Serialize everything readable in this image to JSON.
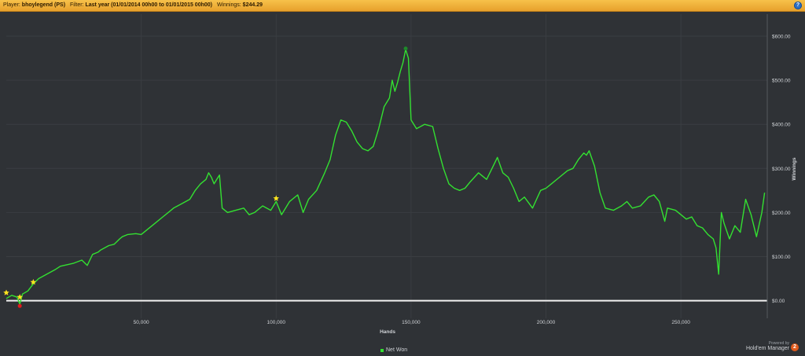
{
  "header": {
    "player_label": "Player:",
    "player_value": "bhoylegend (PS)",
    "filter_label": "Filter:",
    "filter_value": "Last year (01/01/2014 00h00 to 01/01/2015 00h00)",
    "winnings_label": "Winnings:",
    "winnings_value": "$244.29",
    "help_label": "?"
  },
  "branding": {
    "powered_by": "Powered by",
    "product": "Hold'em Manager",
    "badge": "2"
  },
  "colors": {
    "background": "#2f3236",
    "header": "#f2b33d",
    "line": "#33e031",
    "zero_line": "#f2f2f2",
    "grid": "#3a3d42"
  },
  "chart_data": {
    "type": "line",
    "xlabel": "Hands",
    "ylabel": "Winnings",
    "xlim": [
      0,
      282000
    ],
    "ylim": [
      -40,
      650
    ],
    "x_ticks": [
      {
        "value": 50000,
        "label": "50,000"
      },
      {
        "value": 100000,
        "label": "100,000"
      },
      {
        "value": 150000,
        "label": "150,000"
      },
      {
        "value": 200000,
        "label": "200,000"
      },
      {
        "value": 250000,
        "label": "250,000"
      }
    ],
    "y_ticks": [
      {
        "value": 0,
        "label": "$0.00"
      },
      {
        "value": 100,
        "label": "$100.00"
      },
      {
        "value": 200,
        "label": "$200.00"
      },
      {
        "value": 300,
        "label": "$300.00"
      },
      {
        "value": 400,
        "label": "$400.00"
      },
      {
        "value": 500,
        "label": "$500.00"
      },
      {
        "value": 600,
        "label": "$600.00"
      }
    ],
    "grid": true,
    "legend_position": "bottom",
    "series": [
      {
        "name": "Net Won",
        "color": "#33e031",
        "x": [
          0,
          2000,
          4000,
          5000,
          6000,
          8000,
          10000,
          12000,
          15000,
          18000,
          20000,
          25000,
          28000,
          30000,
          32000,
          34000,
          35000,
          38000,
          40000,
          42000,
          43000,
          45000,
          48000,
          50000,
          52000,
          55000,
          58000,
          60000,
          62000,
          65000,
          68000,
          70000,
          72000,
          74000,
          75000,
          76000,
          77000,
          78000,
          79000,
          80000,
          82000,
          85000,
          88000,
          90000,
          92000,
          95000,
          98000,
          100000,
          102000,
          105000,
          108000,
          110000,
          112000,
          115000,
          118000,
          120000,
          122000,
          124000,
          126000,
          128000,
          130000,
          132000,
          134000,
          136000,
          138000,
          140000,
          142000,
          143000,
          144000,
          145000,
          146000,
          147000,
          148000,
          149000,
          150000,
          152000,
          155000,
          158000,
          160000,
          162000,
          164000,
          166000,
          168000,
          170000,
          172000,
          175000,
          178000,
          180000,
          182000,
          184000,
          186000,
          188000,
          190000,
          192000,
          195000,
          198000,
          200000,
          202000,
          205000,
          208000,
          210000,
          212000,
          214000,
          215000,
          216000,
          218000,
          220000,
          222000,
          225000,
          228000,
          230000,
          232000,
          235000,
          238000,
          240000,
          242000,
          244000,
          245000,
          248000,
          250000,
          252000,
          254000,
          256000,
          258000,
          260000,
          262000,
          263000,
          264000,
          265000,
          266000,
          268000,
          270000,
          272000,
          274000,
          276000,
          278000,
          280000,
          281000
        ],
        "y": [
          5,
          12,
          8,
          -8,
          15,
          22,
          38,
          50,
          60,
          70,
          78,
          85,
          92,
          80,
          105,
          110,
          115,
          125,
          128,
          140,
          145,
          150,
          152,
          150,
          160,
          175,
          190,
          200,
          210,
          220,
          230,
          250,
          265,
          275,
          290,
          280,
          265,
          275,
          285,
          210,
          200,
          205,
          210,
          195,
          200,
          215,
          205,
          225,
          195,
          225,
          240,
          200,
          230,
          250,
          290,
          320,
          375,
          410,
          405,
          385,
          360,
          345,
          340,
          350,
          390,
          440,
          460,
          500,
          475,
          495,
          520,
          540,
          570,
          550,
          410,
          390,
          400,
          395,
          345,
          300,
          265,
          255,
          250,
          255,
          270,
          290,
          275,
          300,
          325,
          290,
          280,
          255,
          225,
          235,
          210,
          250,
          255,
          265,
          280,
          295,
          300,
          320,
          335,
          330,
          340,
          305,
          245,
          210,
          205,
          215,
          225,
          210,
          215,
          235,
          240,
          225,
          180,
          210,
          205,
          195,
          185,
          190,
          170,
          165,
          150,
          140,
          120,
          60,
          200,
          175,
          140,
          170,
          155,
          230,
          195,
          145,
          200,
          245
        ]
      }
    ],
    "markers": [
      {
        "type": "star",
        "x": 0,
        "y": 18,
        "color": "#ffe51f"
      },
      {
        "type": "star",
        "x": 5000,
        "y": 8,
        "color": "#ffe51f"
      },
      {
        "type": "star",
        "x": 10000,
        "y": 42,
        "color": "#ffe51f"
      },
      {
        "type": "star",
        "x": 100000,
        "y": 232,
        "color": "#ffe51f"
      },
      {
        "type": "dot",
        "x": 5000,
        "y": -12,
        "color": "#e21b1b"
      },
      {
        "type": "dot",
        "x": 148000,
        "y": 572,
        "color": "#1e8b2a"
      }
    ]
  }
}
